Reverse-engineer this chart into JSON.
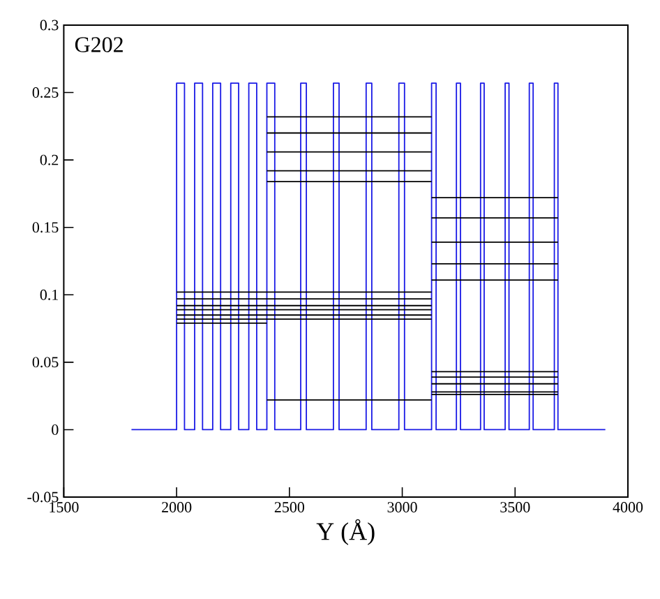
{
  "chart_data": {
    "type": "line",
    "title": "G202",
    "xlabel": "Y (Å)",
    "xlim": [
      1500,
      4000
    ],
    "xticks": [
      1500,
      2000,
      2500,
      3000,
      3500,
      4000
    ],
    "ylim": [
      -0.05,
      0.3
    ],
    "yticks": [
      -0.05,
      0,
      0.05,
      0.1,
      0.15,
      0.2,
      0.25,
      0.3
    ],
    "marker": "none",
    "line_style": "solid",
    "series": [
      {
        "color": "#1a1ae6",
        "x": [
          1800,
          2000,
          2000,
          2035,
          2035,
          2080,
          2080,
          2115,
          2115,
          2160,
          2160,
          2195,
          2195,
          2240,
          2240,
          2275,
          2275,
          2320,
          2320,
          2355,
          2355,
          2400,
          2400,
          2435,
          2435,
          2550,
          2550,
          2575,
          2575,
          2695,
          2695,
          2720,
          2720,
          2840,
          2840,
          2865,
          2865,
          2985,
          2985,
          3010,
          3010,
          3130,
          3130,
          3150,
          3150,
          3240,
          3240,
          3258,
          3258,
          3347,
          3347,
          3363,
          3363,
          3456,
          3456,
          3473,
          3473,
          3563,
          3563,
          3580,
          3580,
          3674,
          3674,
          3690,
          3690,
          3900
        ],
        "values": [
          0,
          0,
          0.257,
          0.257,
          0,
          0,
          0.257,
          0.257,
          0,
          0,
          0.257,
          0.257,
          0,
          0,
          0.257,
          0.257,
          0,
          0,
          0.257,
          0.257,
          0,
          0,
          0.257,
          0.257,
          0,
          0,
          0.257,
          0.257,
          0,
          0,
          0.257,
          0.257,
          0,
          0,
          0.257,
          0.257,
          0,
          0,
          0.257,
          0.257,
          0,
          0,
          0.257,
          0.257,
          0,
          0,
          0.257,
          0.257,
          0,
          0,
          0.257,
          0.257,
          0,
          0,
          0.257,
          0.257,
          0,
          0,
          0.257,
          0.257,
          0,
          0,
          0.257,
          0.257,
          0,
          0
        ]
      },
      {
        "color": "#000000",
        "x": [
          2000,
          3130
        ],
        "values": [
          0.102,
          0.102
        ]
      },
      {
        "color": "#000000",
        "x": [
          2000,
          3130
        ],
        "values": [
          0.097,
          0.097
        ]
      },
      {
        "color": "#000000",
        "x": [
          2000,
          3130
        ],
        "values": [
          0.092,
          0.092
        ]
      },
      {
        "color": "#000000",
        "x": [
          2000,
          3130
        ],
        "values": [
          0.089,
          0.089
        ]
      },
      {
        "color": "#000000",
        "x": [
          2000,
          3130
        ],
        "values": [
          0.085,
          0.085
        ]
      },
      {
        "color": "#000000",
        "x": [
          2000,
          3130
        ],
        "values": [
          0.082,
          0.082
        ]
      },
      {
        "color": "#000000",
        "x": [
          2000,
          2400
        ],
        "values": [
          0.079,
          0.079
        ]
      },
      {
        "color": "#000000",
        "x": [
          2400,
          3130
        ],
        "values": [
          0.232,
          0.232
        ]
      },
      {
        "color": "#000000",
        "x": [
          2400,
          3130
        ],
        "values": [
          0.22,
          0.22
        ]
      },
      {
        "color": "#000000",
        "x": [
          2400,
          3130
        ],
        "values": [
          0.206,
          0.206
        ]
      },
      {
        "color": "#000000",
        "x": [
          2400,
          3130
        ],
        "values": [
          0.192,
          0.192
        ]
      },
      {
        "color": "#000000",
        "x": [
          2400,
          3130
        ],
        "values": [
          0.184,
          0.184
        ]
      },
      {
        "color": "#000000",
        "x": [
          2400,
          3130
        ],
        "values": [
          0.022,
          0.022
        ]
      },
      {
        "color": "#000000",
        "x": [
          3130,
          3690
        ],
        "values": [
          0.172,
          0.172
        ]
      },
      {
        "color": "#000000",
        "x": [
          3130,
          3690
        ],
        "values": [
          0.157,
          0.157
        ]
      },
      {
        "color": "#000000",
        "x": [
          3130,
          3690
        ],
        "values": [
          0.139,
          0.139
        ]
      },
      {
        "color": "#000000",
        "x": [
          3130,
          3690
        ],
        "values": [
          0.123,
          0.123
        ]
      },
      {
        "color": "#000000",
        "x": [
          3130,
          3690
        ],
        "values": [
          0.111,
          0.111
        ]
      },
      {
        "color": "#000000",
        "x": [
          3130,
          3690
        ],
        "values": [
          0.043,
          0.043
        ]
      },
      {
        "color": "#000000",
        "x": [
          3130,
          3690
        ],
        "values": [
          0.039,
          0.039
        ]
      },
      {
        "color": "#000000",
        "x": [
          3130,
          3690
        ],
        "values": [
          0.034,
          0.034
        ]
      },
      {
        "color": "#000000",
        "x": [
          3130,
          3690
        ],
        "values": [
          0.028,
          0.028
        ]
      },
      {
        "color": "#000000",
        "x": [
          3130,
          3690
        ],
        "values": [
          0.026,
          0.026
        ]
      }
    ]
  }
}
